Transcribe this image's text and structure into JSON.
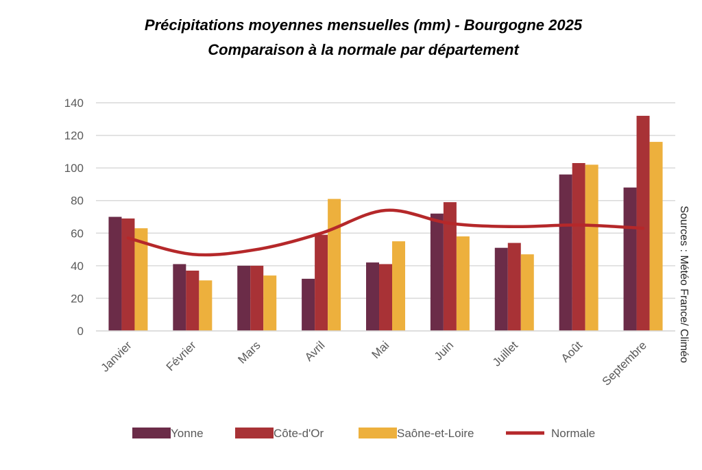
{
  "chart_data": {
    "type": "bar",
    "title": "Précipitations moyennes mensuelles (mm) - Bourgogne 2025",
    "subtitle": "Comparaison à la normale par département",
    "source": "Sources : Météo France/ Climéo",
    "categories": [
      "Janvier",
      "Février",
      "Mars",
      "Avril",
      "Mai",
      "Juin",
      "Juillet",
      "Août",
      "Septembre"
    ],
    "series": [
      {
        "name": "Yonne",
        "color": "#6b2c48",
        "values": [
          70,
          41,
          40,
          32,
          42,
          72,
          51,
          96,
          88
        ]
      },
      {
        "name": "Côte-d'Or",
        "color": "#a83236",
        "values": [
          69,
          37,
          40,
          59,
          41,
          79,
          54,
          103,
          132
        ]
      },
      {
        "name": "Saône-et-Loire",
        "color": "#edb03d",
        "values": [
          63,
          31,
          34,
          81,
          55,
          58,
          47,
          102,
          116
        ]
      },
      {
        "name": "Normale",
        "color": "#b5282a",
        "type": "line",
        "smooth": true,
        "values": [
          57,
          47,
          50,
          60,
          74,
          66,
          64,
          65,
          63
        ]
      }
    ],
    "ylim": [
      0,
      140
    ],
    "yticks": [
      0,
      20,
      40,
      60,
      80,
      100,
      120,
      140
    ],
    "grid": true,
    "legend": "bottom"
  }
}
